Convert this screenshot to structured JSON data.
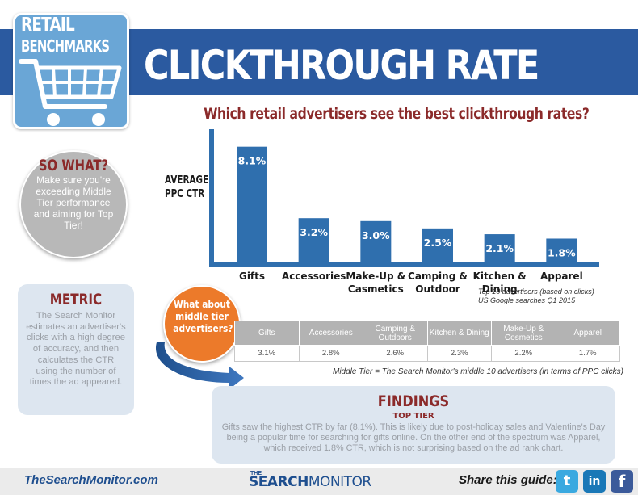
{
  "header": {
    "badge_line1": "RETAIL",
    "badge_line2": "BENCHMARKS",
    "title": "CLICKTHROUGH RATE"
  },
  "colors": {
    "header_blue": "#2b5aa0",
    "bar_blue": "#2f6fae",
    "accent_red": "#8b2a2a",
    "orange": "#ec7a2a"
  },
  "icons": {
    "badge": "shopping-cart-icon",
    "arrow": "curved-arrow-icon",
    "share": [
      "twitter-icon",
      "linkedin-icon",
      "facebook-icon"
    ]
  },
  "chart_data": {
    "type": "bar",
    "title": "Which retail advertisers see the best clickthrough rates?",
    "ylabel_line1": "AVERAGE",
    "ylabel_line2": "PPC CTR",
    "categories": [
      "Gifts",
      "Accessories",
      "Make-Up & Casmetics",
      "Camping & Outdoor",
      "Kitchen & Dining",
      "Apparel"
    ],
    "category_lines": [
      [
        "Gifts"
      ],
      [
        "Accessories"
      ],
      [
        "Make-Up &",
        "Casmetics"
      ],
      [
        "Camping &",
        "Outdoor"
      ],
      [
        "Kitchen &",
        "Dining"
      ],
      [
        "Apparel"
      ]
    ],
    "values": [
      8.1,
      3.2,
      3.0,
      2.5,
      2.1,
      1.8
    ],
    "value_labels": [
      "8.1%",
      "3.2%",
      "3.0%",
      "2.5%",
      "2.1%",
      "1.8%"
    ],
    "ylim": [
      0,
      9.3
    ],
    "grid": false,
    "legend": "none"
  },
  "source_note": {
    "line1": "Top 10 advertisers (based on clicks)",
    "line2": "US Google searches Q1 2015"
  },
  "so_what": {
    "title": "SO WHAT?",
    "body": "Make sure you're exceeding Middle Tier performance and aiming for Top Tier!"
  },
  "metric": {
    "title": "METRIC",
    "body": "The Search Monitor estimates an advertiser's clicks with a high degree of accuracy, and then calculates the CTR using the number of times the ad appeared."
  },
  "middle_tier": {
    "callout": "What about middle tier advertisers?",
    "headers": [
      "Gifts",
      "Accessories",
      "Camping & Outdoors",
      "Kitchen & Dining",
      "Make-Up & Cosmetics",
      "Apparel"
    ],
    "values": [
      "3.1%",
      "2.8%",
      "2.6%",
      "2.3%",
      "2.2%",
      "1.7%"
    ],
    "note": "Middle Tier = The Search Monitor's middle 10 advertisers (in terms of PPC clicks)"
  },
  "findings": {
    "title": "FINDINGS",
    "subtitle": "TOP TIER",
    "body": "Gifts saw the highest CTR by far (8.1%). This is likely due to post-holiday sales and Valentine's Day being a popular time for searching for gifts online. On the other end of the spectrum was Apparel, which received 1.8% CTR, which is not surprising based on the ad rank chart."
  },
  "footer": {
    "url": "TheSearchMonitor.com",
    "logo_small": "THE",
    "logo_bold": "SEARCH",
    "logo_rest": "MONITOR",
    "share_label": "Share this guide:",
    "twitter_glyph": "t",
    "linkedin_glyph": "in",
    "facebook_glyph": "f"
  }
}
